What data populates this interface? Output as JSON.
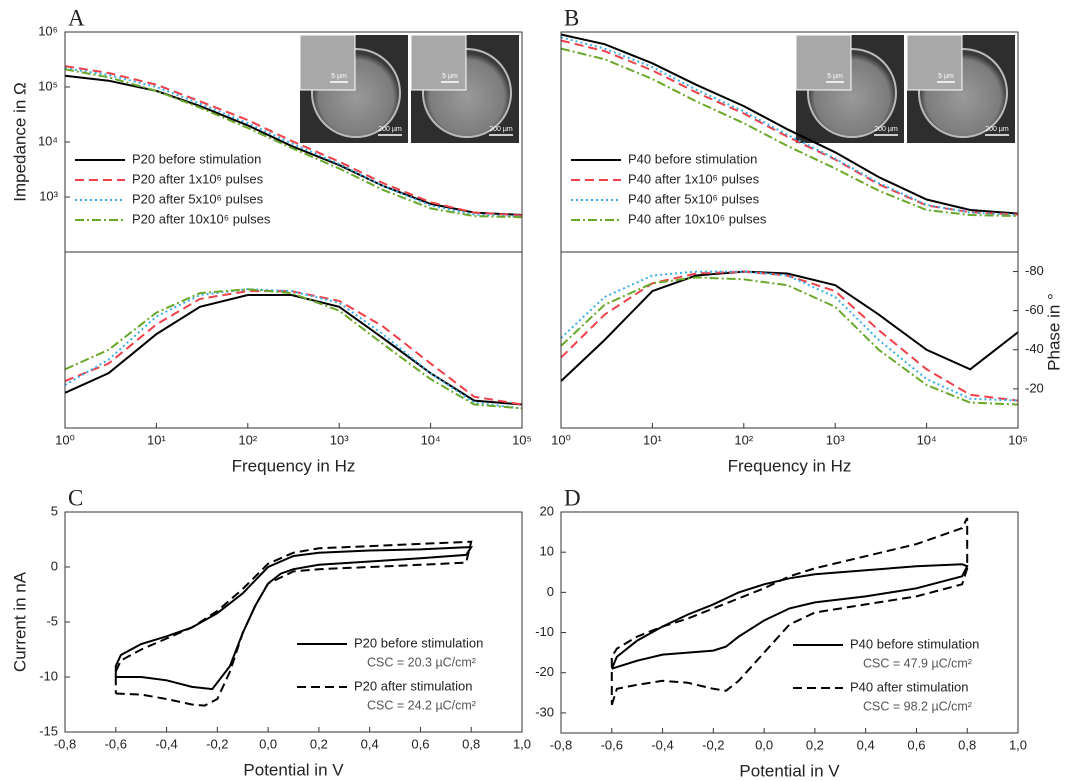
{
  "chart_data": [
    {
      "type": "line",
      "panel": "A",
      "ylabel": "Impedance in Ω",
      "log_x": true,
      "log_y": true,
      "xlim": [
        1,
        100000
      ],
      "ylim": [
        100,
        1000000
      ],
      "yticks": [
        {
          "value": 1000,
          "label": "10³"
        },
        {
          "value": 10000,
          "label": "10⁴"
        },
        {
          "value": 100000,
          "label": "10⁵"
        },
        {
          "value": 1000000,
          "label": "10⁶"
        }
      ],
      "legend": "lower left",
      "insets": [
        {
          "small": "5 µm",
          "large": "200 µm"
        },
        {
          "small": "5 µm",
          "large": "200 µm"
        }
      ],
      "x": [
        1,
        3,
        10,
        30,
        100,
        300,
        1000,
        3000,
        10000,
        30000,
        100000
      ],
      "series": [
        {
          "name": "P20 before stimulation",
          "color": "#000000",
          "dash": "solid",
          "values": [
            160000,
            130000,
            85000,
            45000,
            20000,
            8500,
            3800,
            1600,
            750,
            520,
            470
          ]
        },
        {
          "name": "P20 after 1x10⁶ pulses",
          "color": "#f0404a",
          "dash": "dashed",
          "values": [
            240000,
            180000,
            110000,
            55000,
            25000,
            10500,
            4400,
            1800,
            800,
            520,
            460
          ]
        },
        {
          "name": "P20 after 5x10⁶ pulses",
          "color": "#3aaee6",
          "dash": "dotted",
          "values": [
            220000,
            165000,
            100000,
            50000,
            22000,
            9500,
            4000,
            1600,
            700,
            480,
            440
          ]
        },
        {
          "name": "P20 after 10x10⁶ pulses",
          "color": "#6aa82a",
          "dash": "dashdot",
          "values": [
            210000,
            150000,
            85000,
            42000,
            18000,
            7800,
            3300,
            1350,
            620,
            450,
            430
          ]
        }
      ]
    },
    {
      "type": "line",
      "xlabel": "Frequency in Hz",
      "log_x": true,
      "xlim": [
        1,
        100000
      ],
      "ylim": [
        0,
        -90
      ],
      "xticks": [
        {
          "value": 1,
          "label": "10⁰"
        },
        {
          "value": 10,
          "label": "10¹"
        },
        {
          "value": 100,
          "label": "10²"
        },
        {
          "value": 1000,
          "label": "10³"
        },
        {
          "value": 10000,
          "label": "10⁴"
        },
        {
          "value": 100000,
          "label": "10⁵"
        }
      ],
      "x": [
        1,
        3,
        10,
        30,
        100,
        300,
        1000,
        3000,
        10000,
        30000,
        100000
      ],
      "series": [
        {
          "color": "#000000",
          "dash": "solid",
          "values": [
            -18,
            -28,
            -48,
            -62,
            -68,
            -68,
            -62,
            -46,
            -28,
            -14,
            -12
          ]
        },
        {
          "color": "#f0404a",
          "dash": "dashed",
          "values": [
            -24,
            -33,
            -53,
            -66,
            -70,
            -70,
            -65,
            -52,
            -33,
            -16,
            -12
          ]
        },
        {
          "color": "#3aaee6",
          "dash": "dotted",
          "values": [
            -22,
            -35,
            -57,
            -68,
            -71,
            -70,
            -64,
            -48,
            -28,
            -13,
            -10
          ]
        },
        {
          "color": "#6aa82a",
          "dash": "dashdot",
          "values": [
            -30,
            -40,
            -59,
            -69,
            -71,
            -69,
            -60,
            -43,
            -25,
            -12,
            -10
          ]
        }
      ]
    },
    {
      "type": "line",
      "panel": "B",
      "log_x": true,
      "log_y": true,
      "xlim": [
        1,
        100000
      ],
      "ylim": [
        100,
        1000000
      ],
      "legend": "lower left",
      "insets": [
        {
          "small": "5 µm",
          "large": "200 µm"
        },
        {
          "small": "5 µm",
          "large": "200 µm"
        }
      ],
      "x": [
        1,
        3,
        10,
        30,
        100,
        300,
        1000,
        3000,
        10000,
        30000,
        100000
      ],
      "series": [
        {
          "name": "P40 before stimulation",
          "color": "#000000",
          "dash": "solid",
          "values": [
            900000,
            600000,
            270000,
            110000,
            45000,
            17000,
            6500,
            2300,
            900,
            580,
            500
          ]
        },
        {
          "name": "P40 after 1x10⁶ pulses",
          "color": "#f0404a",
          "dash": "dashed",
          "values": [
            700000,
            450000,
            200000,
            80000,
            33000,
            12500,
            4800,
            1700,
            700,
            530,
            480
          ]
        },
        {
          "name": "P40 after 5x10⁶ pulses",
          "color": "#3aaee6",
          "dash": "dotted",
          "values": [
            800000,
            500000,
            230000,
            90000,
            36000,
            13500,
            5000,
            1800,
            720,
            520,
            470
          ]
        },
        {
          "name": "P40 after 10x10⁶ pulses",
          "color": "#6aa82a",
          "dash": "dashdot",
          "values": [
            500000,
            320000,
            140000,
            55000,
            22000,
            8500,
            3300,
            1300,
            580,
            470,
            450
          ]
        }
      ]
    },
    {
      "type": "line",
      "xlabel": "Frequency in Hz",
      "ylabel": "Phase in °",
      "y_axis": "right",
      "log_x": true,
      "xlim": [
        1,
        100000
      ],
      "ylim": [
        0,
        -90
      ],
      "xticks": [
        {
          "value": 1,
          "label": "10⁰"
        },
        {
          "value": 10,
          "label": "10¹"
        },
        {
          "value": 100,
          "label": "10²"
        },
        {
          "value": 1000,
          "label": "10³"
        },
        {
          "value": 10000,
          "label": "10⁴"
        },
        {
          "value": 100000,
          "label": "10⁵"
        }
      ],
      "yticks": [
        -80,
        -60,
        -40,
        -20
      ],
      "x": [
        1,
        3,
        10,
        30,
        100,
        300,
        1000,
        3000,
        10000,
        30000,
        100000
      ],
      "series": [
        {
          "color": "#000000",
          "dash": "solid",
          "values": [
            -24,
            -45,
            -70,
            -78,
            -80,
            -79,
            -73,
            -58,
            -40,
            -30,
            -49
          ]
        },
        {
          "color": "#f0404a",
          "dash": "dashed",
          "values": [
            -36,
            -58,
            -74,
            -79,
            -80,
            -78,
            -70,
            -50,
            -30,
            -17,
            -14
          ]
        },
        {
          "color": "#3aaee6",
          "dash": "dotted",
          "values": [
            -46,
            -67,
            -78,
            -80,
            -80,
            -78,
            -67,
            -45,
            -25,
            -15,
            -14
          ]
        },
        {
          "color": "#6aa82a",
          "dash": "dashdot",
          "values": [
            -42,
            -63,
            -74,
            -77,
            -76,
            -73,
            -62,
            -40,
            -22,
            -13,
            -12
          ]
        }
      ]
    },
    {
      "type": "line",
      "panel": "C",
      "xlabel": "Potential in V",
      "ylabel": "Current in nA",
      "xlim": [
        -0.8,
        1
      ],
      "ylim": [
        -15,
        5
      ],
      "xticks": [
        {
          "value": -0.8,
          "label": "-0,8"
        },
        {
          "value": -0.6,
          "label": "-0,6"
        },
        {
          "value": -0.4,
          "label": "-0,4"
        },
        {
          "value": -0.2,
          "label": "-0,2"
        },
        {
          "value": 0,
          "label": "0,0"
        },
        {
          "value": 0.2,
          "label": "0,2"
        },
        {
          "value": 0.4,
          "label": "0,4"
        },
        {
          "value": 0.6,
          "label": "0,6"
        },
        {
          "value": 0.8,
          "label": "0,8"
        },
        {
          "value": 1,
          "label": "1,0"
        }
      ],
      "yticks": [
        -15,
        -10,
        -5,
        0,
        5
      ],
      "legend": "lower right",
      "series": [
        {
          "name": "P20 before stimulation",
          "annotation": "CSC = 20.3 µC/cm²",
          "color": "#000000",
          "dash": "solid",
          "x": [
            -0.6,
            -0.5,
            -0.4,
            -0.3,
            -0.22,
            -0.15,
            -0.1,
            -0.05,
            0,
            0.05,
            0.1,
            0.2,
            0.4,
            0.6,
            0.78,
            0.8,
            0.78,
            0.6,
            0.4,
            0.2,
            0.1,
            0,
            -0.05,
            -0.1,
            -0.2,
            -0.3,
            -0.4,
            -0.5,
            -0.58,
            -0.6,
            -0.6
          ],
          "values": [
            -10,
            -10,
            -10.3,
            -10.9,
            -11.1,
            -9,
            -6,
            -3.5,
            -1.5,
            -0.6,
            -0.2,
            0.2,
            0.5,
            0.8,
            1.1,
            1.8,
            1.8,
            1.6,
            1.5,
            1.3,
            1,
            0,
            -1.2,
            -2.4,
            -4.2,
            -5.5,
            -6.3,
            -7,
            -8,
            -9,
            -10
          ]
        },
        {
          "name": "P20 after stimulation",
          "annotation": "CSC = 24.2 µC/cm²",
          "color": "#000000",
          "dash": "dashed",
          "x": [
            -0.6,
            -0.5,
            -0.4,
            -0.3,
            -0.25,
            -0.2,
            -0.15,
            -0.1,
            -0.05,
            0,
            0.1,
            0.2,
            0.4,
            0.6,
            0.78,
            0.8,
            0.6,
            0.4,
            0.2,
            0.1,
            0,
            -0.1,
            -0.2,
            -0.3,
            -0.4,
            -0.5,
            -0.58,
            -0.6,
            -0.6
          ],
          "values": [
            -11.5,
            -11.6,
            -12,
            -12.5,
            -12.6,
            -12,
            -9.5,
            -6,
            -3.5,
            -1.5,
            -0.4,
            -0.2,
            0,
            0.2,
            0.4,
            2.3,
            2.1,
            1.9,
            1.7,
            1.3,
            0.3,
            -2,
            -4,
            -5.5,
            -6.5,
            -7.5,
            -8.5,
            -9.5,
            -11.5
          ]
        }
      ]
    },
    {
      "type": "line",
      "panel": "D",
      "xlabel": "Potential in V",
      "xlim": [
        -0.8,
        1
      ],
      "ylim": [
        -35,
        20
      ],
      "xticks": [
        {
          "value": -0.8,
          "label": "-0,8"
        },
        {
          "value": -0.6,
          "label": "-0,6"
        },
        {
          "value": -0.4,
          "label": "-0,4"
        },
        {
          "value": -0.2,
          "label": "-0,2"
        },
        {
          "value": 0,
          "label": "0,0"
        },
        {
          "value": 0.2,
          "label": "0,2"
        },
        {
          "value": 0.4,
          "label": "0,4"
        },
        {
          "value": 0.6,
          "label": "0,6"
        },
        {
          "value": 0.8,
          "label": "0,8"
        },
        {
          "value": 1,
          "label": "1,0"
        }
      ],
      "yticks": [
        -30,
        -20,
        -10,
        0,
        10,
        20
      ],
      "legend": "lower right",
      "series": [
        {
          "name": "P40 before stimulation",
          "annotation": "CSC = 47.9 µC/cm²",
          "color": "#000000",
          "dash": "solid",
          "x": [
            -0.6,
            -0.5,
            -0.4,
            -0.3,
            -0.2,
            -0.15,
            -0.1,
            0,
            0.1,
            0.2,
            0.4,
            0.6,
            0.78,
            0.8,
            0.78,
            0.6,
            0.4,
            0.2,
            0.1,
            0,
            -0.1,
            -0.2,
            -0.3,
            -0.4,
            -0.5,
            -0.58,
            -0.6
          ],
          "values": [
            -19,
            -17,
            -15.5,
            -15,
            -14.5,
            -13.5,
            -11,
            -7,
            -4,
            -2.5,
            -1,
            1,
            4,
            6.5,
            7,
            6.5,
            5.5,
            4.5,
            3.5,
            2,
            0,
            -3,
            -5.5,
            -8.5,
            -12,
            -16,
            -19
          ]
        },
        {
          "name": "P40 after stimulation",
          "annotation": "CSC = 98.2 µC/cm²",
          "color": "#000000",
          "dash": "dashed",
          "x": [
            -0.6,
            -0.58,
            -0.5,
            -0.4,
            -0.3,
            -0.2,
            -0.15,
            -0.1,
            0,
            0.1,
            0.2,
            0.4,
            0.6,
            0.78,
            0.8,
            0.8,
            0.78,
            0.6,
            0.4,
            0.2,
            0.1,
            0,
            -0.1,
            -0.2,
            -0.3,
            -0.4,
            -0.5,
            -0.58,
            -0.6,
            -0.6
          ],
          "values": [
            -28,
            -24,
            -23,
            -22,
            -22.5,
            -24,
            -24.5,
            -22,
            -15,
            -8,
            -5,
            -3,
            -1,
            2,
            6,
            18.5,
            16,
            12,
            9,
            6,
            4,
            1,
            -1.5,
            -4,
            -6.5,
            -8.5,
            -11,
            -14,
            -16,
            -28
          ]
        }
      ]
    }
  ]
}
